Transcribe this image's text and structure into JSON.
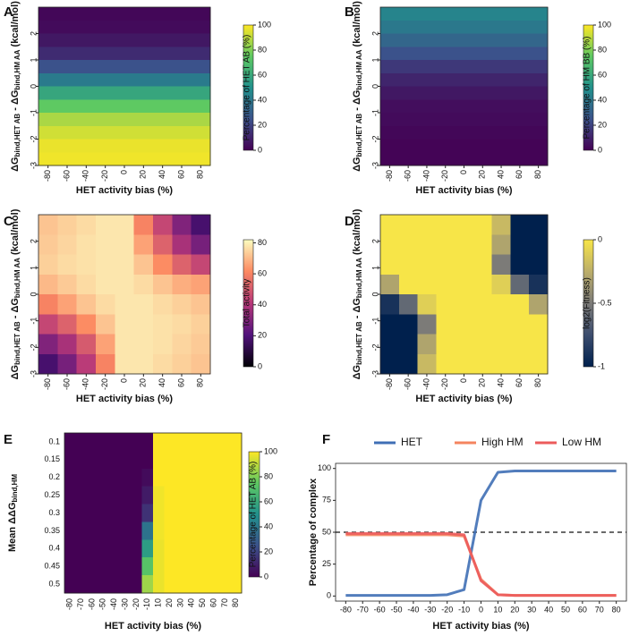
{
  "chart_data": [
    {
      "type": "heatmap",
      "label": "A",
      "x": [
        0
      ],
      "y": [
        2.75,
        2.25,
        1.75,
        1.25,
        0.75,
        0.25,
        -0.25,
        -0.75,
        -1.25,
        -1.75,
        -2.25,
        -2.75
      ],
      "z": [
        [
          2
        ],
        [
          3
        ],
        [
          7
        ],
        [
          13
        ],
        [
          25
        ],
        [
          41
        ],
        [
          59
        ],
        [
          75
        ],
        [
          87
        ],
        [
          93
        ],
        [
          97
        ],
        [
          98
        ]
      ],
      "xlim": [
        -90,
        90
      ],
      "ylim": [
        -3,
        3
      ],
      "xticks": [
        -80,
        -60,
        -40,
        -20,
        0,
        20,
        40,
        60,
        80
      ],
      "yticks": [
        -3,
        -2,
        -1,
        0,
        1,
        2
      ],
      "x_label": "HET activity bias (%)",
      "y_label": [
        {
          "text": "ΔG"
        },
        {
          "text": "bind,HET AB",
          "sub": true
        },
        {
          "text": " - ΔG"
        },
        {
          "text": "bind,HM AA",
          "sub": true
        },
        {
          "text": " (kcal/mol)"
        }
      ],
      "colormap": "viridis",
      "colorbar": {
        "label": "Percentage of HET AB (%)",
        "lim": [
          0,
          100
        ],
        "ticks": [
          0,
          20,
          40,
          60,
          80,
          100
        ]
      }
    },
    {
      "type": "heatmap",
      "label": "B",
      "x": [
        0
      ],
      "y": [
        2.75,
        2.25,
        1.75,
        1.25,
        0.75,
        0.25,
        -0.25,
        -0.75,
        -1.25,
        -1.75,
        -2.25,
        -2.75
      ],
      "z": [
        [
          45
        ],
        [
          40
        ],
        [
          33
        ],
        [
          25
        ],
        [
          17
        ],
        [
          11
        ],
        [
          7
        ],
        [
          4
        ],
        [
          3
        ],
        [
          2
        ],
        [
          1
        ],
        [
          1
        ]
      ],
      "xlim": [
        -90,
        90
      ],
      "ylim": [
        -3,
        3
      ],
      "xticks": [
        -80,
        -60,
        -40,
        -20,
        0,
        20,
        40,
        60,
        80
      ],
      "yticks": [
        -3,
        -2,
        -1,
        0,
        1,
        2
      ],
      "x_label": "HET activity bias (%)",
      "y_label": [
        {
          "text": "ΔG"
        },
        {
          "text": "bind,HET AB",
          "sub": true
        },
        {
          "text": " - ΔG"
        },
        {
          "text": "bind,HM AA",
          "sub": true
        },
        {
          "text": " (kcal/mol)"
        }
      ],
      "colormap": "viridis",
      "colorbar": {
        "label": "Percentage of HM BB (%)",
        "lim": [
          0,
          100
        ],
        "ticks": [
          0,
          20,
          40,
          60,
          80,
          100
        ]
      }
    },
    {
      "type": "heatmap",
      "label": "C",
      "x": [
        -80,
        -60,
        -40,
        -20,
        0,
        20,
        40,
        60,
        80
      ],
      "y": [
        2.625,
        1.875,
        1.125,
        0.375,
        -0.375,
        -1.125,
        -1.875,
        -2.625
      ],
      "z": [
        [
          72,
          74,
          76,
          78,
          78,
          60,
          45,
          30,
          18
        ],
        [
          73,
          75,
          77,
          78,
          78,
          66,
          52,
          38,
          28
        ],
        [
          74,
          76,
          77,
          78,
          78,
          72,
          62,
          52,
          45
        ],
        [
          70,
          73,
          76,
          78,
          78,
          76,
          72,
          68,
          66
        ],
        [
          60,
          66,
          72,
          76,
          78,
          78,
          76,
          74,
          72
        ],
        [
          45,
          52,
          62,
          72,
          78,
          78,
          77,
          76,
          74
        ],
        [
          30,
          38,
          50,
          66,
          78,
          78,
          77,
          75,
          73
        ],
        [
          18,
          28,
          42,
          60,
          78,
          78,
          76,
          74,
          72
        ]
      ],
      "xlim": [
        -90,
        90
      ],
      "ylim": [
        -3,
        3
      ],
      "xticks": [
        -80,
        -60,
        -40,
        -20,
        0,
        20,
        40,
        60,
        80
      ],
      "yticks": [
        -3,
        -2,
        -1,
        0,
        1,
        2
      ],
      "x_label": "HET activity bias (%)",
      "y_label": [
        {
          "text": "ΔG"
        },
        {
          "text": "bind,HET AB",
          "sub": true
        },
        {
          "text": " - ΔG"
        },
        {
          "text": "bind,HM AA",
          "sub": true
        },
        {
          "text": " (kcal/mol)"
        }
      ],
      "colormap": "magma",
      "colorbar": {
        "label": "Total activity",
        "lim": [
          0,
          82
        ],
        "ticks": [
          0,
          20,
          40,
          60,
          80
        ]
      }
    },
    {
      "type": "heatmap",
      "label": "D",
      "x": [
        -80,
        -60,
        -40,
        -20,
        0,
        20,
        40,
        60,
        80
      ],
      "y": [
        2.625,
        1.875,
        1.125,
        0.375,
        -0.375,
        -1.125,
        -1.875,
        -2.625
      ],
      "z": [
        [
          0,
          0,
          0,
          0,
          0,
          0,
          -0.2,
          -1,
          -1
        ],
        [
          0,
          0,
          0,
          0,
          0,
          0,
          -0.3,
          -1,
          -1
        ],
        [
          0,
          0,
          0,
          0,
          0,
          0,
          -0.5,
          -1,
          -1
        ],
        [
          -0.3,
          0,
          0,
          0,
          0,
          0,
          -0.1,
          -0.6,
          -0.9
        ],
        [
          -0.9,
          -0.6,
          -0.1,
          0,
          0,
          0,
          0,
          0,
          -0.3
        ],
        [
          -1,
          -1,
          -0.5,
          0,
          0,
          0,
          0,
          0,
          0
        ],
        [
          -1,
          -1,
          -0.3,
          0,
          0,
          0,
          0,
          0,
          0
        ],
        [
          -1,
          -1,
          -0.2,
          0,
          0,
          0,
          0,
          0,
          0
        ]
      ],
      "xlim": [
        -90,
        90
      ],
      "ylim": [
        -3,
        3
      ],
      "xticks": [
        -80,
        -60,
        -40,
        -20,
        0,
        20,
        40,
        60,
        80
      ],
      "yticks": [
        -3,
        -2,
        -1,
        0,
        1,
        2
      ],
      "x_label": "HET activity bias (%)",
      "y_label": [
        {
          "text": "ΔG"
        },
        {
          "text": "bind,HET AB",
          "sub": true
        },
        {
          "text": " - ΔG"
        },
        {
          "text": "bind,HM AA",
          "sub": true
        },
        {
          "text": " (kcal/mol)"
        }
      ],
      "colormap": "cividis",
      "colorbar": {
        "label": "log2(Fitness)",
        "lim": [
          -1,
          0
        ],
        "ticks": [
          -1,
          -0.5,
          0
        ]
      }
    },
    {
      "type": "heatmap",
      "label": "E",
      "categories": [
        "-80",
        "-70",
        "-60",
        "-50",
        "-40",
        "-30",
        "-20",
        "-10",
        "10",
        "20",
        "30",
        "40",
        "50",
        "60",
        "70",
        "80"
      ],
      "y_categories": [
        "0.1",
        "0.15",
        "0.2",
        "0.25",
        "0.3",
        "0.35",
        "0.4",
        "0.45",
        "0.5"
      ],
      "z": [
        [
          0,
          0,
          0,
          0,
          0,
          0,
          0,
          0,
          100,
          100,
          100,
          100,
          100,
          100,
          100,
          100
        ],
        [
          0,
          0,
          0,
          0,
          0,
          0,
          0,
          0,
          100,
          100,
          100,
          100,
          100,
          100,
          100,
          100
        ],
        [
          0,
          0,
          0,
          0,
          0,
          0,
          0,
          3,
          100,
          100,
          100,
          100,
          100,
          100,
          100,
          100
        ],
        [
          0,
          0,
          0,
          0,
          0,
          0,
          0,
          8,
          98,
          100,
          100,
          100,
          100,
          100,
          100,
          100
        ],
        [
          0,
          0,
          0,
          0,
          0,
          0,
          0,
          15,
          98,
          100,
          100,
          100,
          100,
          100,
          100,
          100
        ],
        [
          0,
          0,
          0,
          0,
          0,
          0,
          0,
          38,
          98,
          100,
          100,
          100,
          100,
          100,
          100,
          100
        ],
        [
          0,
          0,
          0,
          0,
          0,
          0,
          0,
          55,
          97,
          100,
          100,
          100,
          100,
          100,
          100,
          100
        ],
        [
          0,
          0,
          0,
          0,
          0,
          0,
          0,
          72,
          97,
          100,
          100,
          100,
          100,
          100,
          100,
          100
        ],
        [
          0,
          0,
          0,
          0,
          0,
          0,
          0,
          85,
          97,
          100,
          100,
          100,
          100,
          100,
          100,
          100
        ]
      ],
      "x_label": "HET activity bias (%)",
      "y_label": [
        {
          "text": "Mean ΔΔG"
        },
        {
          "text": "bind,HM",
          "sub": true
        }
      ],
      "colormap": "viridis",
      "colorbar": {
        "label": "Percentage of HET AB (%)",
        "lim": [
          0,
          100
        ],
        "ticks": [
          0,
          20,
          40,
          60,
          80,
          100
        ]
      }
    },
    {
      "type": "line",
      "label": "F",
      "x": [
        -80,
        -70,
        -60,
        -50,
        -40,
        -30,
        -20,
        -10,
        0,
        10,
        20,
        30,
        40,
        50,
        60,
        70,
        80
      ],
      "series": [
        {
          "name": "HET",
          "color": "#3f6fb5",
          "values": [
            0.5,
            0.5,
            0.5,
            0.5,
            0.5,
            0.5,
            1,
            5,
            75,
            97,
            98,
            98,
            98,
            98,
            98,
            98,
            98
          ]
        },
        {
          "name": "High HM",
          "color": "#f4845f",
          "values": [
            48,
            48,
            48,
            48,
            48,
            48,
            48,
            47,
            13,
            1,
            0.5,
            0.5,
            0.5,
            0.5,
            0.5,
            0.5,
            0.5
          ]
        },
        {
          "name": "Low HM",
          "color": "#ec5b5b",
          "values": [
            49,
            49,
            49,
            49,
            49,
            49,
            49,
            48,
            12,
            1,
            0.5,
            0.5,
            0.5,
            0.5,
            0.5,
            0.5,
            0.5
          ]
        }
      ],
      "hline": 50,
      "xlim": [
        -86,
        86
      ],
      "ylim": [
        -4,
        104
      ],
      "xticks": [
        -80,
        -70,
        -60,
        -50,
        -40,
        -30,
        -20,
        -10,
        0,
        10,
        20,
        30,
        40,
        50,
        60,
        70,
        80
      ],
      "yticks": [
        0,
        25,
        50,
        75,
        100
      ],
      "x_label": "HET activity bias (%)",
      "y_label": "Percentage of complex",
      "legend": "top"
    }
  ]
}
